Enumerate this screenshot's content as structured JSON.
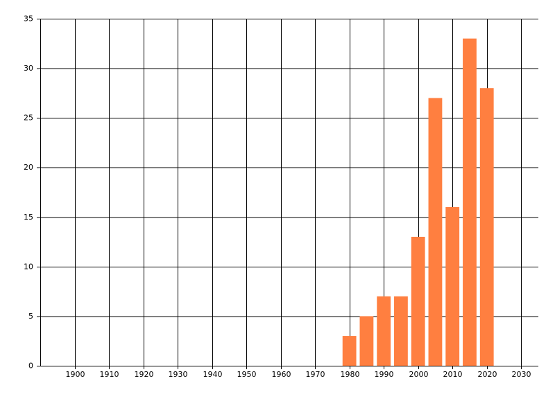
{
  "chart_data": {
    "type": "bar",
    "x": [
      1980,
      1985,
      1990,
      1995,
      2000,
      2005,
      2010,
      2015,
      2020
    ],
    "values": [
      3,
      5,
      7,
      7,
      13,
      27,
      16,
      33,
      28
    ],
    "color": "#ff7f40",
    "xlim": [
      1890,
      2035
    ],
    "xticks": [
      1900,
      1910,
      1920,
      1930,
      1940,
      1950,
      1960,
      1970,
      1980,
      1990,
      2000,
      2010,
      2020,
      2030
    ],
    "ylim": [
      0,
      35
    ],
    "yticks": [
      0,
      5,
      10,
      15,
      20,
      25,
      30,
      35
    ],
    "grid": true
  }
}
